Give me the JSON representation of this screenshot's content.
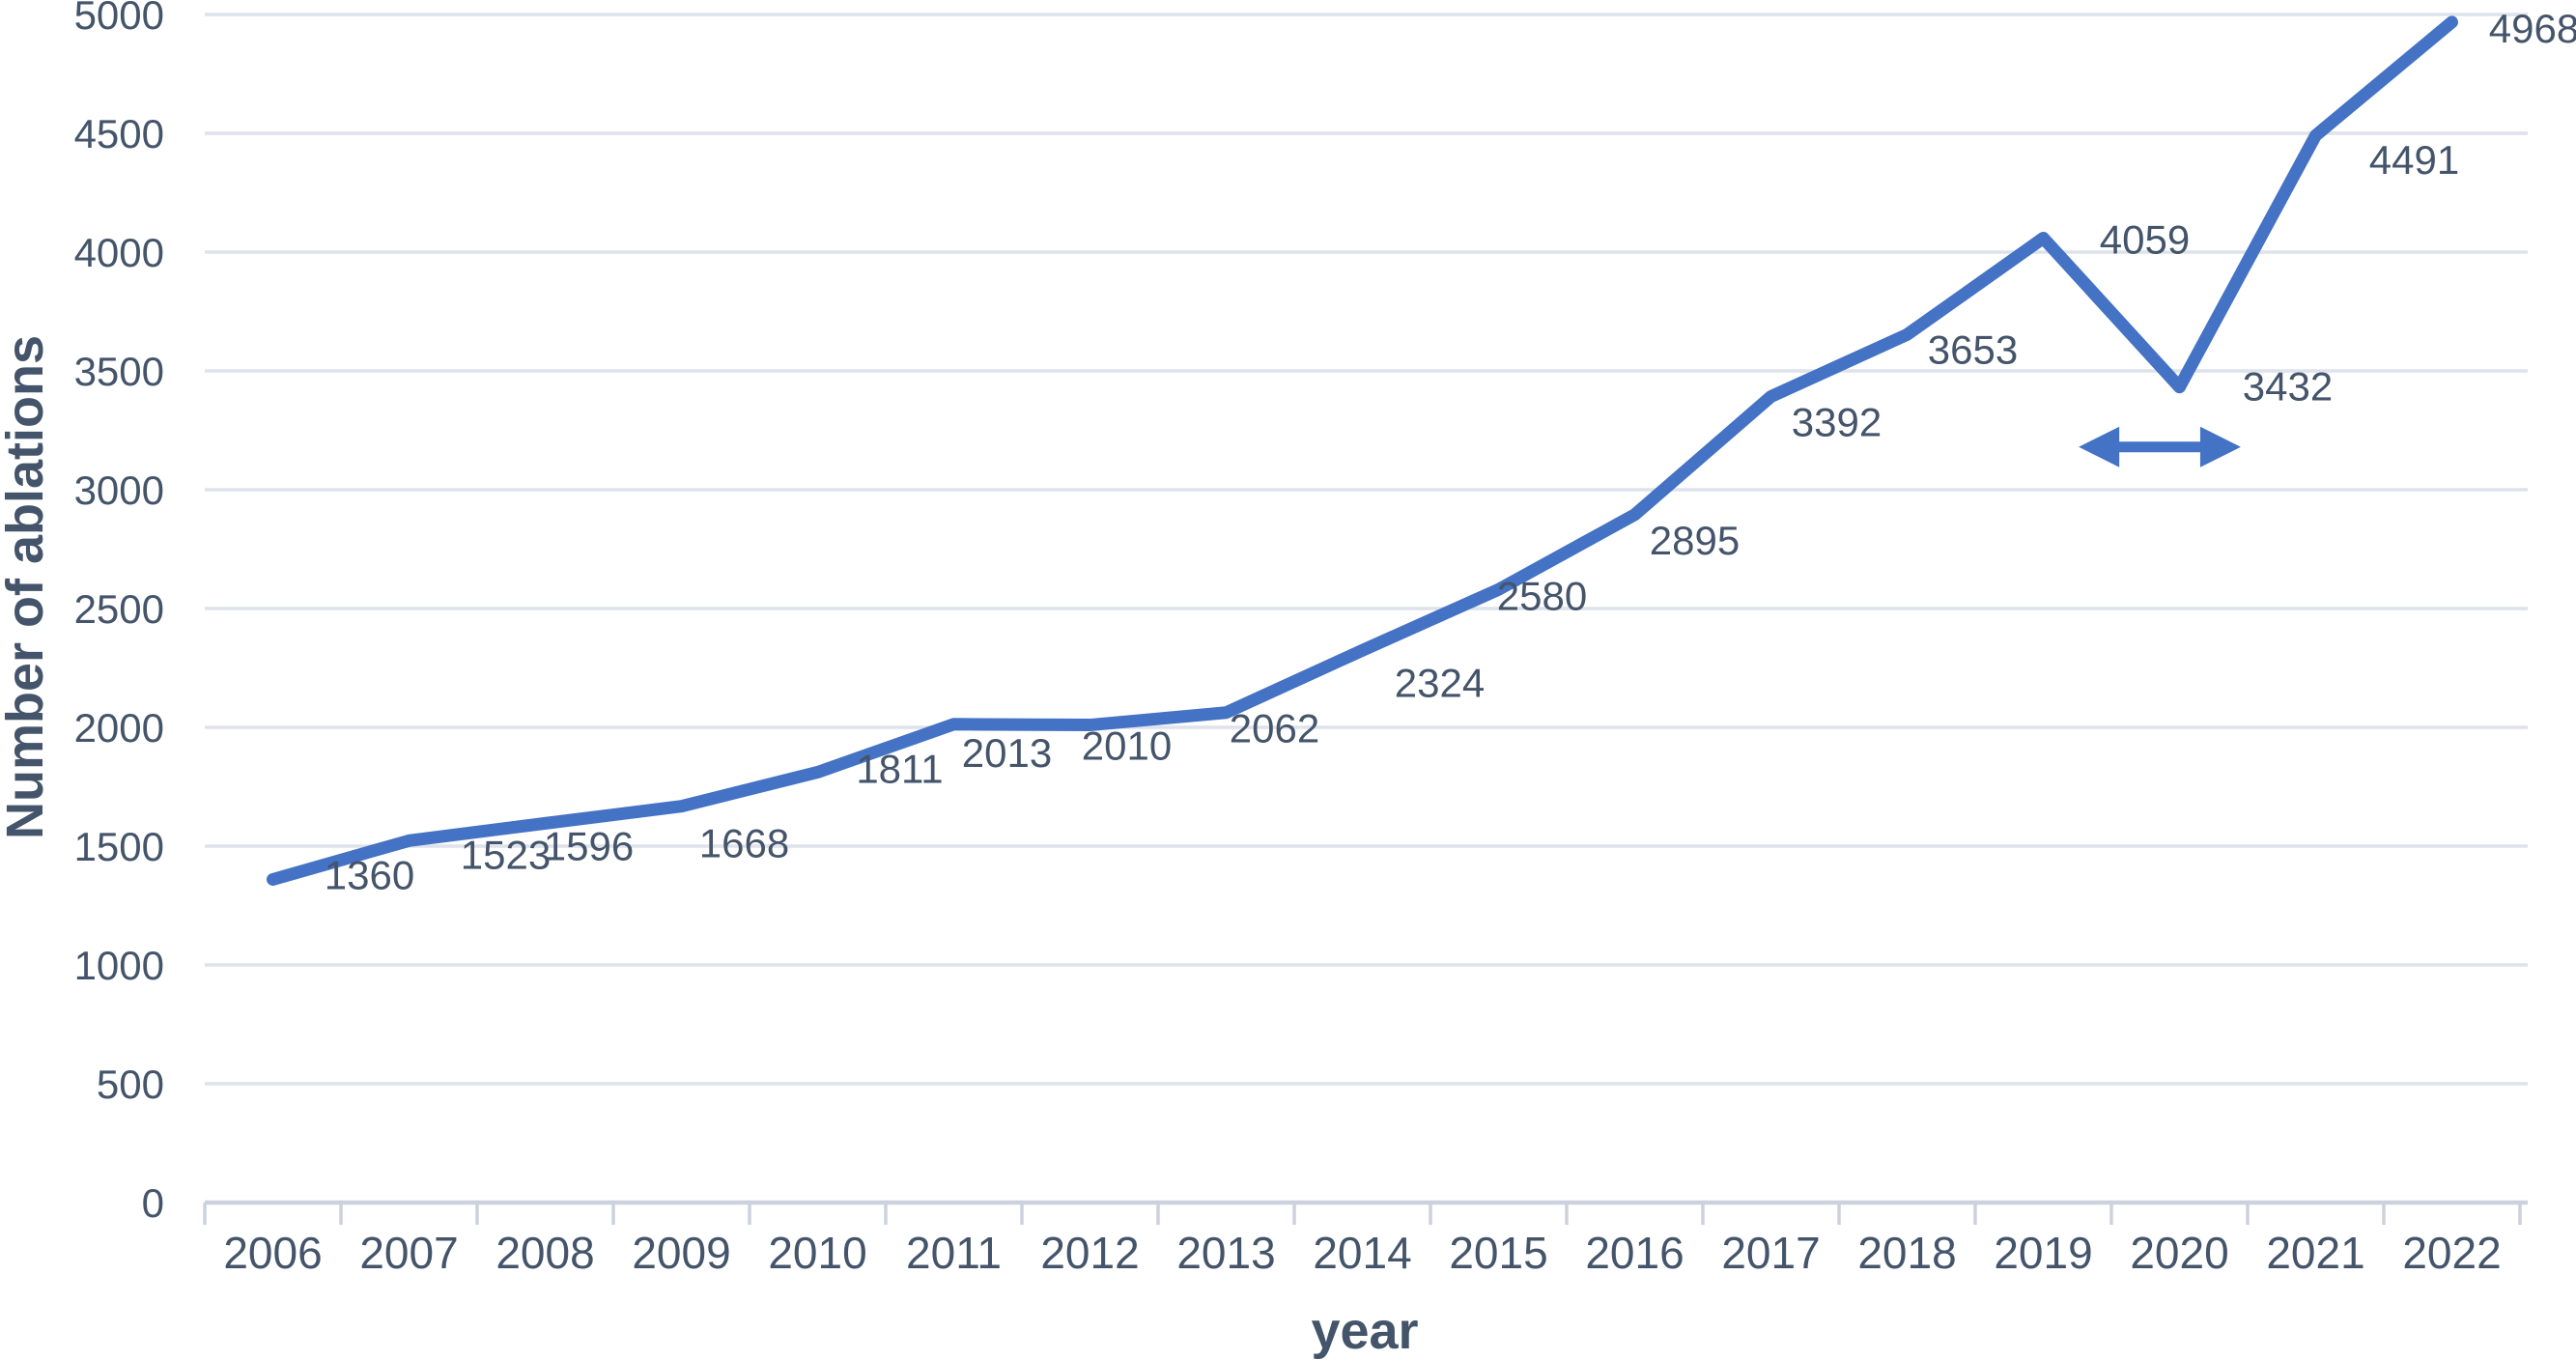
{
  "chart_data": {
    "type": "line",
    "title": "",
    "xlabel": "year",
    "ylabel": "Number of ablations",
    "categories": [
      "2006",
      "2007",
      "2008",
      "2009",
      "2010",
      "2011",
      "2012",
      "2013",
      "2014",
      "2015",
      "2016",
      "2017",
      "2018",
      "2019",
      "2020",
      "2021",
      "2022"
    ],
    "values": [
      1360,
      1523,
      1596,
      1668,
      1811,
      2013,
      2010,
      2062,
      2324,
      2580,
      2895,
      3392,
      3653,
      4059,
      3432,
      4491,
      4968
    ],
    "data_labels": [
      "1360",
      "1523",
      "1596",
      "1668",
      "1811",
      "2013",
      "2010",
      "2062",
      "2324",
      "2580",
      "2895",
      "3392",
      "3653",
      "4059",
      "3432",
      "4491",
      "4968"
    ],
    "ylim": [
      0,
      5000
    ],
    "yticks": [
      0,
      500,
      1000,
      1500,
      2000,
      2500,
      3000,
      3500,
      4000,
      4500,
      5000
    ],
    "grid": "horizontal",
    "legend": "none",
    "markers": "none",
    "colors": {
      "line": "#4472C4",
      "text": "#44546A",
      "gridline": "#DEE2EA",
      "axis_line": "#CBD2DE"
    },
    "annotations": [
      {
        "type": "double_headed_arrow",
        "between_years": [
          "2019",
          "2020"
        ],
        "at_value": 3180,
        "color": "#4472C4"
      }
    ]
  }
}
